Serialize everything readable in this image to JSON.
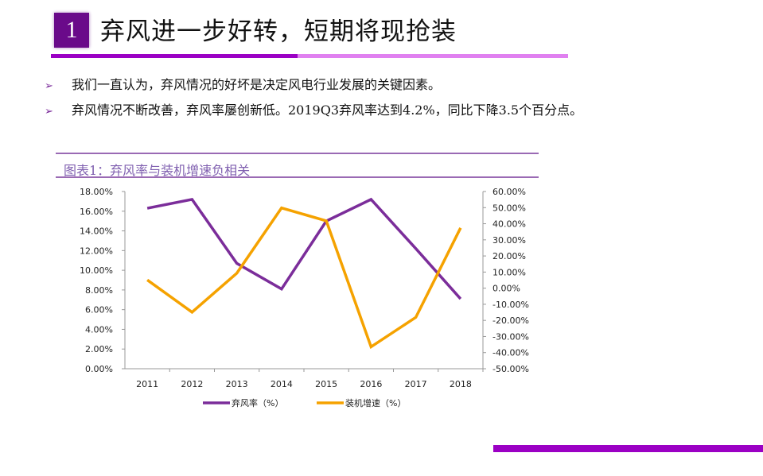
{
  "header": {
    "number": "1",
    "title": "弃风进一步好转，短期将现抢装"
  },
  "bullets": [
    "我们一直认为，弃风情况的好坏是决定风电行业发展的关键因素。",
    "弃风情况不断改善，弃风率屡创新低。2019Q3弃风率达到4.2%，同比下降3.5个百分点。"
  ],
  "colors": {
    "accent": "#9b00c4",
    "accent_light": "#e080f0",
    "series1": "#7b2d9a",
    "series2": "#f5a200"
  },
  "chart_data": {
    "type": "line",
    "title": "图表1：弃风率与装机增速负相关",
    "categories": [
      "2011",
      "2012",
      "2013",
      "2014",
      "2015",
      "2016",
      "2017",
      "2018"
    ],
    "y_left": {
      "range": [
        0,
        18
      ],
      "ticks": [
        "0.00%",
        "2.00%",
        "4.00%",
        "6.00%",
        "8.00%",
        "10.00%",
        "12.00%",
        "14.00%",
        "16.00%",
        "18.00%"
      ]
    },
    "y_right": {
      "range": [
        -50,
        60
      ],
      "ticks": [
        "-50.00%",
        "-40.00%",
        "-30.00%",
        "-20.00%",
        "-10.00%",
        "0.00%",
        "10.00%",
        "20.00%",
        "30.00%",
        "40.00%",
        "50.00%",
        "60.00%"
      ]
    },
    "series": [
      {
        "name": "弃风率（%）",
        "axis": "left",
        "color": "#7b2d9a",
        "values": [
          16.3,
          17.2,
          10.7,
          8.1,
          15.0,
          17.2,
          12.2,
          7.1
        ]
      },
      {
        "name": "装机增速（%）",
        "axis": "right",
        "color": "#f5a200",
        "values": [
          5.1,
          -14.9,
          9.3,
          49.8,
          41.8,
          -36.4,
          -18.1,
          37.4
        ]
      }
    ],
    "legend": "bottom",
    "grid": false
  }
}
